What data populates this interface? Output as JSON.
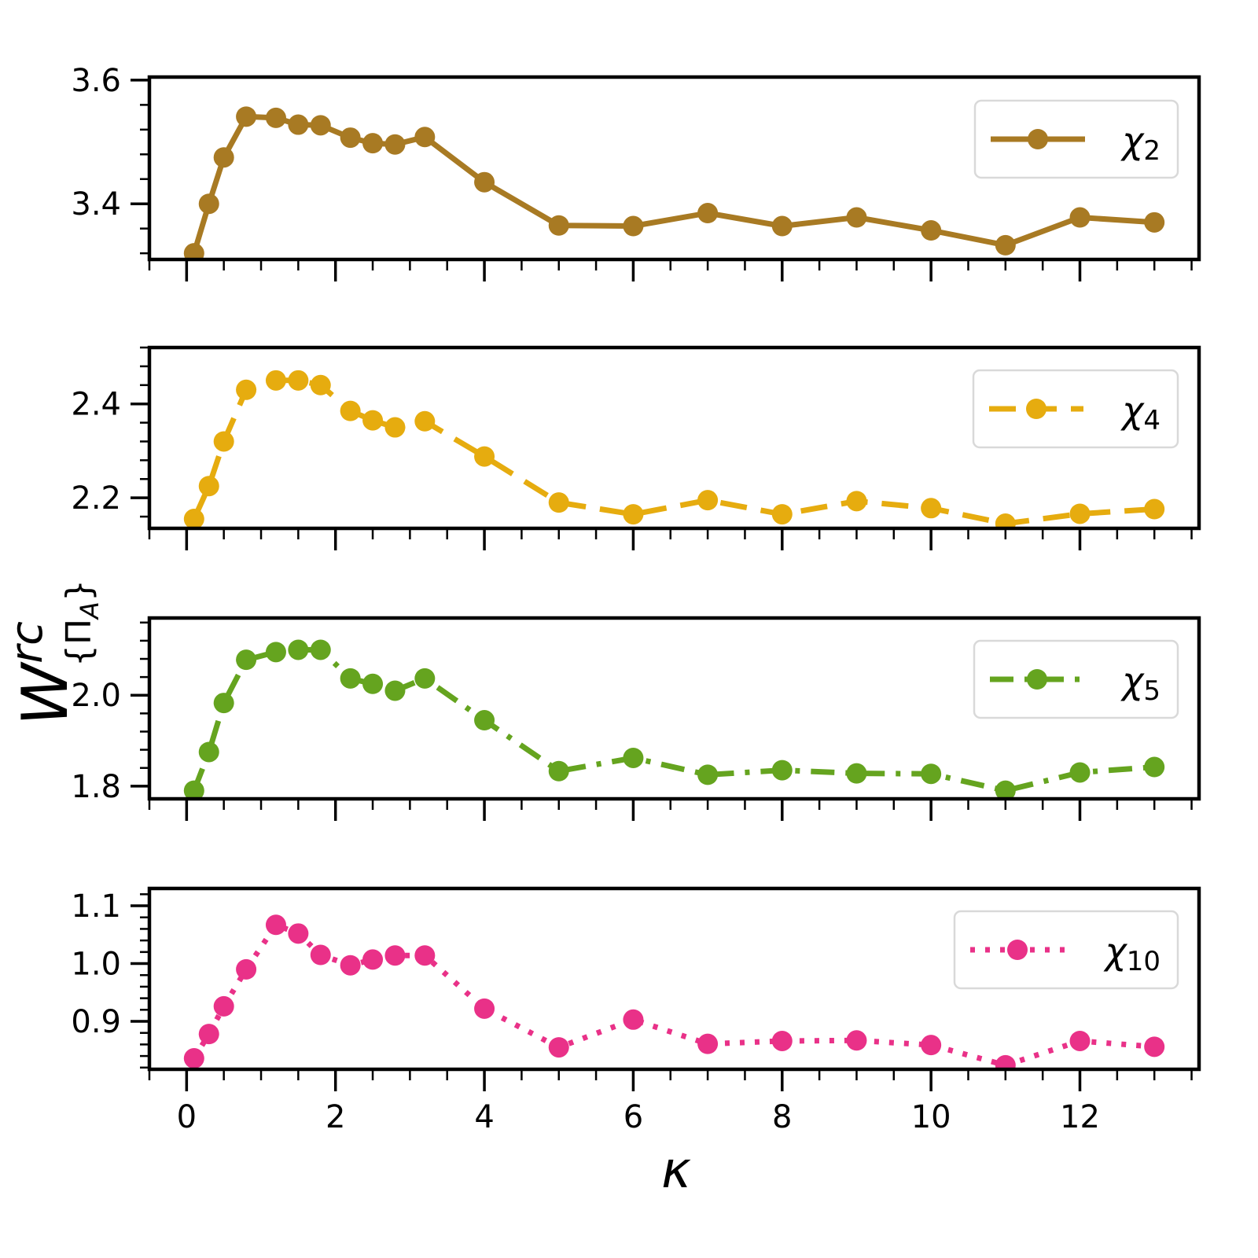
{
  "chart_data": [
    {
      "type": "line",
      "series": [
        {
          "name": "χ2",
          "label_main": "χ",
          "label_sub": "2",
          "color": "#a87a23",
          "dash": "solid",
          "x": [
            0.1,
            0.3,
            0.5,
            0.8,
            1.2,
            1.5,
            1.8,
            2.2,
            2.5,
            2.8,
            3.2,
            4,
            5,
            6,
            7,
            8,
            9,
            10,
            11,
            12,
            13
          ],
          "y": [
            3.32,
            3.4,
            3.475,
            3.541,
            3.539,
            3.528,
            3.527,
            3.507,
            3.498,
            3.496,
            3.508,
            3.435,
            3.365,
            3.364,
            3.385,
            3.364,
            3.378,
            3.357,
            3.333,
            3.378,
            3.37
          ]
        }
      ],
      "ylim": [
        3.31,
        3.605
      ],
      "xlim": [
        -0.5,
        13.6
      ],
      "yticks": [
        3.4,
        3.6
      ],
      "ytick_labels": [
        "3.4",
        "3.6"
      ]
    },
    {
      "type": "line",
      "series": [
        {
          "name": "χ4",
          "label_main": "χ",
          "label_sub": "4",
          "color": "#e6ac0f",
          "dash": "dashed",
          "x": [
            0.1,
            0.3,
            0.5,
            0.8,
            1.2,
            1.5,
            1.8,
            2.2,
            2.5,
            2.8,
            3.2,
            4,
            5,
            6,
            7,
            8,
            9,
            10,
            11,
            12,
            13
          ],
          "y": [
            2.155,
            2.225,
            2.32,
            2.43,
            2.45,
            2.45,
            2.44,
            2.385,
            2.365,
            2.35,
            2.363,
            2.288,
            2.19,
            2.165,
            2.195,
            2.165,
            2.193,
            2.178,
            2.145,
            2.166,
            2.176
          ]
        }
      ],
      "ylim": [
        2.135,
        2.52
      ],
      "xlim": [
        -0.5,
        13.6
      ],
      "yticks": [
        2.2,
        2.4
      ],
      "ytick_labels": [
        "2.2",
        "2.4"
      ]
    },
    {
      "type": "line",
      "series": [
        {
          "name": "χ5",
          "label_main": "χ",
          "label_sub": "5",
          "color": "#65a41f",
          "dash": "dashdot",
          "x": [
            0.1,
            0.3,
            0.5,
            0.8,
            1.2,
            1.5,
            1.8,
            2.2,
            2.5,
            2.8,
            3.2,
            4,
            5,
            6,
            7,
            8,
            9,
            10,
            11,
            12,
            13
          ],
          "y": [
            1.79,
            1.875,
            1.983,
            2.078,
            2.095,
            2.1,
            2.1,
            2.037,
            2.025,
            2.01,
            2.037,
            1.945,
            1.833,
            1.862,
            1.825,
            1.835,
            1.828,
            1.827,
            1.79,
            1.83,
            1.842
          ]
        }
      ],
      "ylim": [
        1.772,
        2.17
      ],
      "xlim": [
        -0.5,
        13.6
      ],
      "yticks": [
        1.8,
        2.0
      ],
      "ytick_labels": [
        "1.8",
        "2.0"
      ]
    },
    {
      "type": "line",
      "series": [
        {
          "name": "χ10",
          "label_main": "χ",
          "label_sub": "10",
          "color": "#e93188",
          "dash": "dotted",
          "x": [
            0.1,
            0.3,
            0.5,
            0.8,
            1.2,
            1.5,
            1.8,
            2.2,
            2.5,
            2.8,
            3.2,
            4,
            5,
            6,
            7,
            8,
            9,
            10,
            11,
            12,
            13
          ],
          "y": [
            0.836,
            0.878,
            0.926,
            0.99,
            1.067,
            1.052,
            1.015,
            0.997,
            1.007,
            1.014,
            1.014,
            0.922,
            0.855,
            0.903,
            0.861,
            0.866,
            0.867,
            0.859,
            0.824,
            0.866,
            0.856
          ]
        }
      ],
      "ylim": [
        0.817,
        1.13
      ],
      "xlim": [
        -0.5,
        13.6
      ],
      "yticks": [
        0.9,
        1.0,
        1.1
      ],
      "ytick_labels": [
        "0.9",
        "1.0",
        "1.1"
      ]
    }
  ],
  "x_axis": {
    "ticks": [
      0,
      2,
      4,
      6,
      8,
      10,
      12
    ],
    "tick_labels": [
      "0",
      "2",
      "4",
      "6",
      "8",
      "10",
      "12"
    ],
    "label": "κ"
  },
  "y_axis": {
    "label_main": "W",
    "label_sup": "rc",
    "label_sub": "{Π",
    "label_sub_index": "A",
    "label_sub_close": "}"
  }
}
